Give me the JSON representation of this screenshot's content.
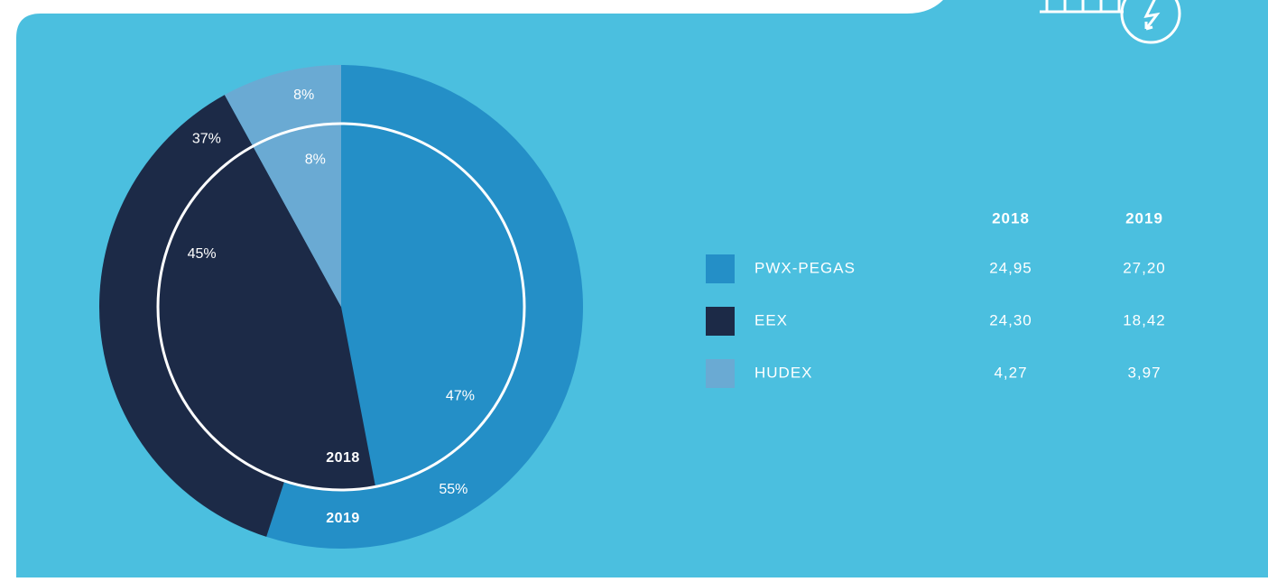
{
  "chart_data": {
    "type": "pie",
    "categories": [
      "PWX-PEGAS",
      "EEX",
      "HUDEX"
    ],
    "colors": [
      "#248fc7",
      "#1c2a47",
      "#6aaad3"
    ],
    "series": [
      {
        "name": "2018",
        "values": [
          47,
          45,
          8
        ],
        "value_labels": [
          "47%",
          "45%",
          "8%"
        ]
      },
      {
        "name": "2019",
        "values": [
          55,
          37,
          8
        ],
        "value_labels": [
          "55%",
          "37%",
          "8%"
        ]
      }
    ]
  },
  "table": {
    "header": [
      "2018",
      "2019"
    ],
    "rows": [
      [
        "24,95",
        "27,20"
      ],
      [
        "24,30",
        "18,42"
      ],
      [
        "4,27",
        "3,97"
      ]
    ]
  }
}
